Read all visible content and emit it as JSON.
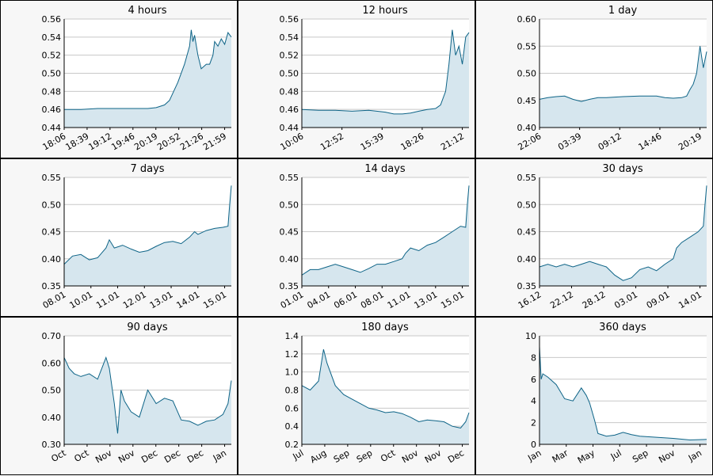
{
  "chart_data": [
    {
      "type": "area",
      "title": "4 hours",
      "ylim": [
        0.44,
        0.56
      ],
      "yticks": [
        "0.44",
        "0.46",
        "0.48",
        "0.50",
        "0.52",
        "0.54",
        "0.56"
      ],
      "xtick_labels": [
        "18:06",
        "18:39",
        "19:12",
        "19:46",
        "20:19",
        "20:52",
        "21:26",
        "21:59"
      ],
      "x": [
        0,
        0.1,
        0.2,
        0.3,
        0.4,
        0.45,
        0.5,
        0.55,
        0.6,
        0.63,
        0.65,
        0.68,
        0.72,
        0.75,
        0.76,
        0.77,
        0.78,
        0.8,
        0.82,
        0.85,
        0.87,
        0.89,
        0.9,
        0.92,
        0.94,
        0.96,
        0.98,
        1.0
      ],
      "values": [
        0.46,
        0.46,
        0.461,
        0.461,
        0.461,
        0.461,
        0.461,
        0.462,
        0.465,
        0.47,
        0.478,
        0.49,
        0.51,
        0.53,
        0.548,
        0.535,
        0.542,
        0.52,
        0.505,
        0.51,
        0.51,
        0.52,
        0.535,
        0.53,
        0.538,
        0.532,
        0.545,
        0.54
      ]
    },
    {
      "type": "area",
      "title": "12 hours",
      "ylim": [
        0.44,
        0.56
      ],
      "yticks": [
        "0.44",
        "0.46",
        "0.48",
        "0.50",
        "0.52",
        "0.54",
        "0.56"
      ],
      "xtick_labels": [
        "10:06",
        "12:52",
        "15:39",
        "18:26",
        "21:12"
      ],
      "x": [
        0,
        0.1,
        0.2,
        0.3,
        0.4,
        0.5,
        0.55,
        0.6,
        0.65,
        0.7,
        0.75,
        0.8,
        0.83,
        0.86,
        0.88,
        0.9,
        0.92,
        0.94,
        0.96,
        0.98,
        1.0
      ],
      "values": [
        0.46,
        0.459,
        0.459,
        0.458,
        0.459,
        0.457,
        0.455,
        0.455,
        0.456,
        0.458,
        0.46,
        0.461,
        0.465,
        0.48,
        0.51,
        0.548,
        0.52,
        0.53,
        0.51,
        0.54,
        0.545
      ]
    },
    {
      "type": "area",
      "title": "1 day",
      "ylim": [
        0.4,
        0.6
      ],
      "yticks": [
        "0.40",
        "0.45",
        "0.50",
        "0.55",
        "0.60"
      ],
      "xtick_labels": [
        "22:06",
        "03:39",
        "09:12",
        "14:46",
        "20:19"
      ],
      "x": [
        0,
        0.05,
        0.1,
        0.15,
        0.2,
        0.25,
        0.3,
        0.35,
        0.4,
        0.5,
        0.6,
        0.7,
        0.75,
        0.8,
        0.85,
        0.88,
        0.9,
        0.92,
        0.94,
        0.96,
        0.98,
        1.0
      ],
      "values": [
        0.452,
        0.455,
        0.457,
        0.458,
        0.452,
        0.448,
        0.452,
        0.455,
        0.455,
        0.457,
        0.458,
        0.458,
        0.455,
        0.454,
        0.455,
        0.458,
        0.47,
        0.48,
        0.5,
        0.55,
        0.51,
        0.54
      ]
    },
    {
      "type": "area",
      "title": "7 days",
      "ylim": [
        0.35,
        0.55
      ],
      "yticks": [
        "0.35",
        "0.40",
        "0.45",
        "0.50",
        "0.55"
      ],
      "xtick_labels": [
        "08.01",
        "10.01",
        "11.01",
        "12.01",
        "13.01",
        "14.01",
        "15.01"
      ],
      "x": [
        0,
        0.05,
        0.1,
        0.15,
        0.2,
        0.25,
        0.27,
        0.3,
        0.35,
        0.4,
        0.45,
        0.5,
        0.55,
        0.6,
        0.65,
        0.7,
        0.75,
        0.78,
        0.8,
        0.85,
        0.9,
        0.95,
        0.98,
        0.99,
        1.0
      ],
      "values": [
        0.39,
        0.405,
        0.408,
        0.398,
        0.402,
        0.42,
        0.435,
        0.42,
        0.425,
        0.418,
        0.412,
        0.415,
        0.423,
        0.43,
        0.432,
        0.428,
        0.44,
        0.45,
        0.445,
        0.452,
        0.456,
        0.458,
        0.46,
        0.5,
        0.535
      ]
    },
    {
      "type": "area",
      "title": "14 days",
      "ylim": [
        0.35,
        0.55
      ],
      "yticks": [
        "0.35",
        "0.40",
        "0.45",
        "0.50",
        "0.55"
      ],
      "xtick_labels": [
        "01.01",
        "04.01",
        "06.01",
        "08.01",
        "11.01",
        "13.01",
        "15.01"
      ],
      "x": [
        0,
        0.05,
        0.1,
        0.15,
        0.2,
        0.25,
        0.3,
        0.35,
        0.4,
        0.45,
        0.5,
        0.55,
        0.6,
        0.62,
        0.65,
        0.7,
        0.75,
        0.8,
        0.85,
        0.9,
        0.95,
        0.98,
        0.99,
        1.0
      ],
      "values": [
        0.37,
        0.38,
        0.38,
        0.385,
        0.39,
        0.385,
        0.38,
        0.375,
        0.382,
        0.39,
        0.39,
        0.395,
        0.4,
        0.41,
        0.42,
        0.415,
        0.425,
        0.43,
        0.44,
        0.45,
        0.46,
        0.458,
        0.5,
        0.535
      ]
    },
    {
      "type": "area",
      "title": "30 days",
      "ylim": [
        0.35,
        0.55
      ],
      "yticks": [
        "0.35",
        "0.40",
        "0.45",
        "0.50",
        "0.55"
      ],
      "xtick_labels": [
        "16.12",
        "22.12",
        "28.12",
        "03.01",
        "09.01",
        "14.01"
      ],
      "x": [
        0,
        0.05,
        0.1,
        0.15,
        0.2,
        0.25,
        0.3,
        0.35,
        0.4,
        0.45,
        0.5,
        0.55,
        0.6,
        0.65,
        0.7,
        0.75,
        0.8,
        0.82,
        0.85,
        0.9,
        0.95,
        0.98,
        0.99,
        1.0
      ],
      "values": [
        0.385,
        0.39,
        0.385,
        0.39,
        0.385,
        0.39,
        0.395,
        0.39,
        0.385,
        0.37,
        0.36,
        0.365,
        0.38,
        0.385,
        0.378,
        0.39,
        0.4,
        0.42,
        0.43,
        0.44,
        0.45,
        0.46,
        0.5,
        0.535
      ]
    },
    {
      "type": "area",
      "title": "90 days",
      "ylim": [
        0.3,
        0.7
      ],
      "yticks": [
        "0.30",
        "0.40",
        "0.50",
        "0.60",
        "0.70"
      ],
      "xtick_labels": [
        "Oct",
        "Oct",
        "Nov",
        "Nov",
        "Dec",
        "Dec",
        "Dec",
        "Jan"
      ],
      "x": [
        0,
        0.03,
        0.06,
        0.1,
        0.15,
        0.2,
        0.25,
        0.27,
        0.3,
        0.32,
        0.34,
        0.36,
        0.4,
        0.45,
        0.5,
        0.55,
        0.6,
        0.65,
        0.7,
        0.75,
        0.8,
        0.85,
        0.9,
        0.95,
        0.98,
        1.0
      ],
      "values": [
        0.62,
        0.58,
        0.56,
        0.55,
        0.56,
        0.54,
        0.62,
        0.58,
        0.45,
        0.34,
        0.5,
        0.46,
        0.42,
        0.4,
        0.5,
        0.45,
        0.47,
        0.46,
        0.39,
        0.385,
        0.37,
        0.385,
        0.39,
        0.41,
        0.45,
        0.535
      ]
    },
    {
      "type": "area",
      "title": "180 days",
      "ylim": [
        0.2,
        1.4
      ],
      "yticks": [
        "0.2",
        "0.4",
        "0.6",
        "0.8",
        "1.0",
        "1.2",
        "1.4"
      ],
      "xtick_labels": [
        "Jul",
        "Aug",
        "Sep",
        "Sep",
        "Oct",
        "Nov",
        "Nov",
        "Dec"
      ],
      "x": [
        0,
        0.05,
        0.1,
        0.13,
        0.15,
        0.2,
        0.25,
        0.3,
        0.35,
        0.4,
        0.45,
        0.5,
        0.55,
        0.6,
        0.65,
        0.7,
        0.75,
        0.8,
        0.85,
        0.9,
        0.95,
        0.98,
        1.0
      ],
      "values": [
        0.85,
        0.8,
        0.9,
        1.25,
        1.1,
        0.85,
        0.75,
        0.7,
        0.65,
        0.6,
        0.58,
        0.55,
        0.56,
        0.54,
        0.5,
        0.45,
        0.47,
        0.46,
        0.45,
        0.4,
        0.38,
        0.45,
        0.55
      ]
    },
    {
      "type": "area",
      "title": "360 days",
      "ylim": [
        0,
        10
      ],
      "yticks": [
        "0",
        "2",
        "4",
        "6",
        "8",
        "10"
      ],
      "xtick_labels": [
        "Jan",
        "Mar",
        "May",
        "Jul",
        "Sep",
        "Nov",
        "Jan"
      ],
      "x": [
        0,
        0.01,
        0.02,
        0.05,
        0.1,
        0.15,
        0.2,
        0.25,
        0.28,
        0.3,
        0.33,
        0.35,
        0.4,
        0.45,
        0.5,
        0.55,
        0.6,
        0.7,
        0.8,
        0.9,
        1.0
      ],
      "values": [
        9,
        6,
        6.5,
        6.2,
        5.5,
        4.2,
        4.0,
        5.2,
        4.5,
        3.8,
        2.2,
        1.0,
        0.75,
        0.85,
        1.1,
        0.9,
        0.75,
        0.65,
        0.55,
        0.4,
        0.45
      ]
    }
  ]
}
